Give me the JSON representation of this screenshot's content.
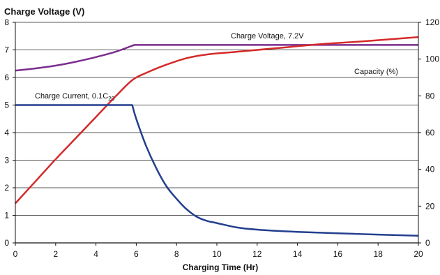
{
  "chart_data": {
    "type": "line",
    "title": "Charge Voltage (V)",
    "xlabel": "Charging Time (Hr)",
    "ylabel": "",
    "y2label": "",
    "xlim": [
      0,
      20
    ],
    "ylim": [
      0,
      8
    ],
    "y2lim": [
      0,
      120
    ],
    "x_ticks": [
      0,
      2,
      4,
      6,
      8,
      10,
      12,
      14,
      16,
      18,
      20
    ],
    "y_ticks": [
      0,
      1,
      2,
      3,
      4,
      5,
      6,
      7,
      8
    ],
    "y2_ticks": [
      0,
      20,
      40,
      60,
      80,
      100,
      120
    ],
    "grid": "horizontal",
    "colors": {
      "voltage": "#7b2d8e",
      "capacity": "#d42a2a",
      "current": "#233f8f"
    },
    "series": [
      {
        "key": "voltage",
        "axis": "left",
        "label": "Charge Voltage, 7.2V",
        "points": [
          [
            0,
            6.25
          ],
          [
            1,
            6.33
          ],
          [
            2,
            6.43
          ],
          [
            3,
            6.57
          ],
          [
            4,
            6.74
          ],
          [
            5,
            6.94
          ],
          [
            5.9,
            7.18
          ],
          [
            20,
            7.18
          ]
        ]
      },
      {
        "key": "capacity",
        "axis": "right",
        "label": "Capacity (%)",
        "points": [
          [
            0,
            21.5
          ],
          [
            1,
            33.5
          ],
          [
            2,
            45.5
          ],
          [
            3,
            57
          ],
          [
            4,
            68.5
          ],
          [
            5,
            80
          ],
          [
            5.8,
            88.5
          ],
          [
            6.5,
            92.5
          ],
          [
            7.5,
            97
          ],
          [
            8.5,
            100.5
          ],
          [
            9.5,
            102.5
          ],
          [
            11,
            104
          ],
          [
            13,
            106
          ],
          [
            15,
            108
          ],
          [
            17,
            109.5
          ],
          [
            20,
            112
          ]
        ]
      },
      {
        "key": "current",
        "axis": "left",
        "label_main": "Charge Current, 0.1C",
        "label_sub": "20",
        "points": [
          [
            0,
            5.0
          ],
          [
            5.8,
            5.0
          ],
          [
            6.0,
            4.5
          ],
          [
            6.5,
            3.5
          ],
          [
            7,
            2.7
          ],
          [
            7.5,
            2.05
          ],
          [
            8,
            1.6
          ],
          [
            8.5,
            1.22
          ],
          [
            9,
            0.95
          ],
          [
            9.5,
            0.8
          ],
          [
            10,
            0.72
          ],
          [
            11,
            0.56
          ],
          [
            12,
            0.48
          ],
          [
            14,
            0.4
          ],
          [
            16,
            0.35
          ],
          [
            18,
            0.3
          ],
          [
            20,
            0.26
          ]
        ]
      }
    ]
  }
}
